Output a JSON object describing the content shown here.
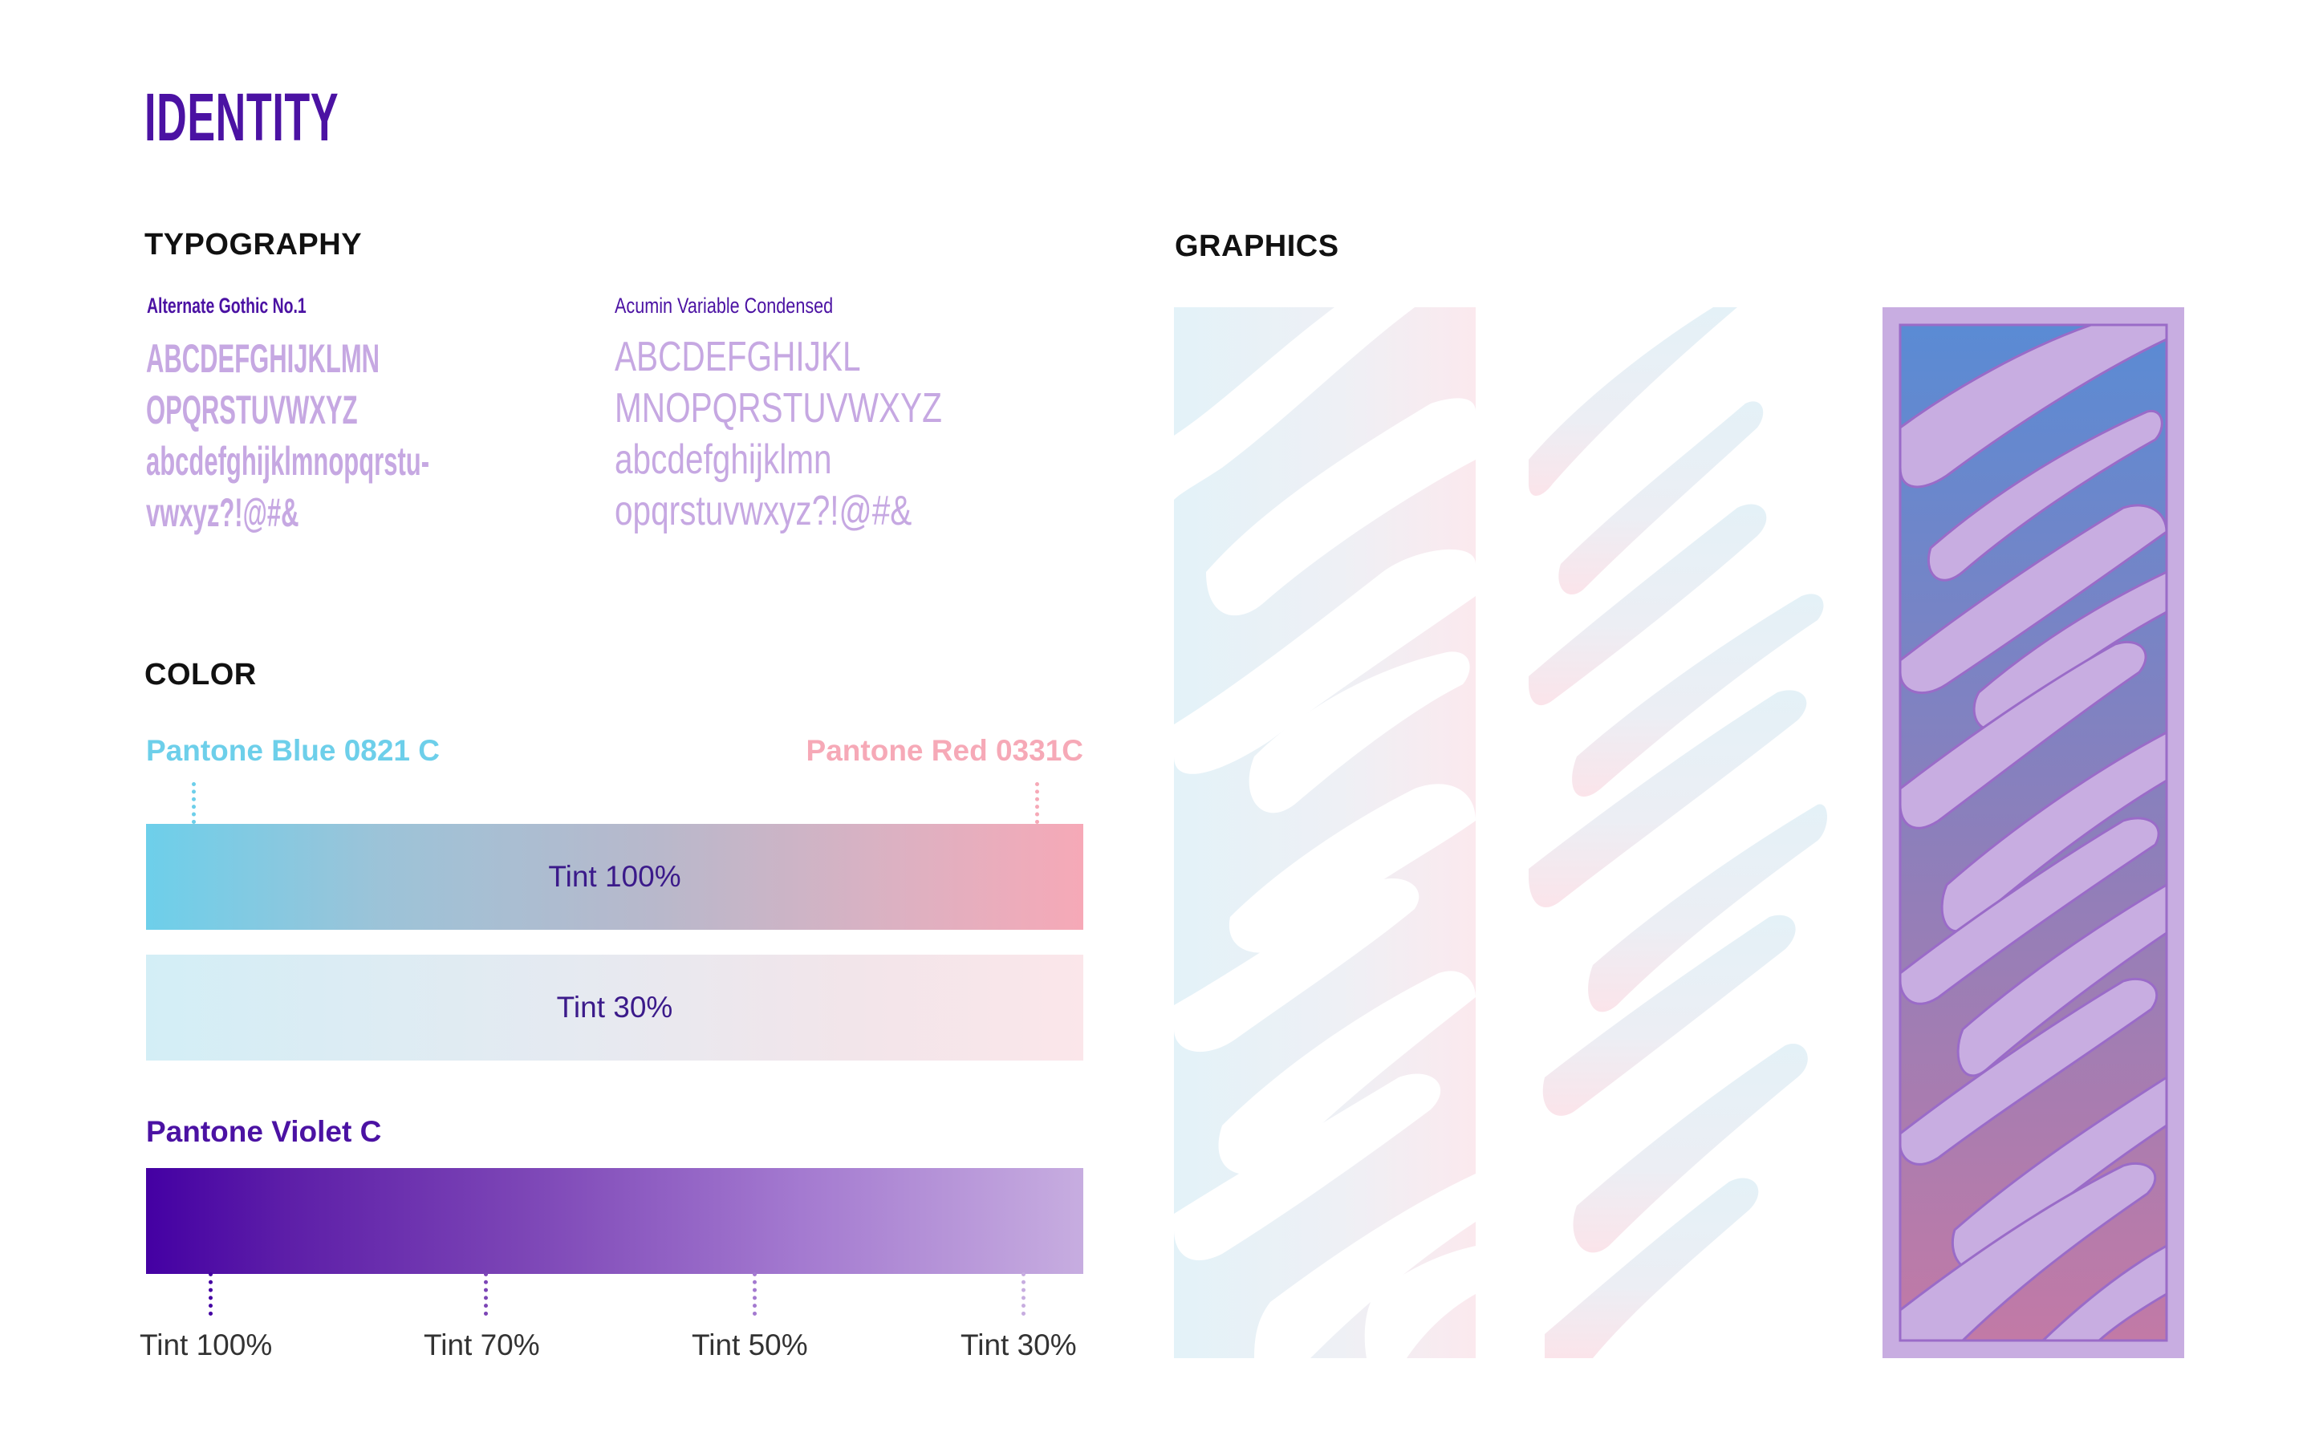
{
  "page": {
    "title": "IDENTITY"
  },
  "typography": {
    "heading": "TYPOGRAPHY",
    "fonts": [
      {
        "name": "Alternate Gothic No.1",
        "lines": [
          "ABCDEFGHIJKLMN",
          "OPQRSTUVWXYZ",
          "abcdefghijklmnopqrstu-",
          "vwxyz?!@#&"
        ]
      },
      {
        "name": "Acumin Variable Condensed",
        "lines": [
          "ABCDEFGHIJKL",
          "MNOPQRSTUVWXYZ",
          "abcdefghijklmn",
          "opqrstuvwxyz?!@#&"
        ]
      }
    ]
  },
  "color": {
    "heading": "COLOR",
    "pantone_blue": {
      "label": "Pantone Blue 0821 C",
      "hex": "#6dcfea"
    },
    "pantone_red": {
      "label": "Pantone Red 0331C",
      "hex": "#f6a9b7"
    },
    "gradient_bars": [
      {
        "label": "Tint 100%"
      },
      {
        "label": "Tint 30%"
      }
    ],
    "pantone_violet": {
      "label": "Pantone Violet C",
      "hex": "#4400a3",
      "tints": [
        "Tint 100%",
        "Tint 70%",
        "Tint 50%",
        "Tint 30%"
      ],
      "tint_colors": [
        "#4400a3",
        "#7c45b6",
        "#a47ad0",
        "#c7ade0"
      ]
    }
  },
  "graphics": {
    "heading": "GRAPHICS",
    "panels": [
      "light-gradient-pattern",
      "white-pattern-tint",
      "violet-framed-pattern"
    ]
  }
}
